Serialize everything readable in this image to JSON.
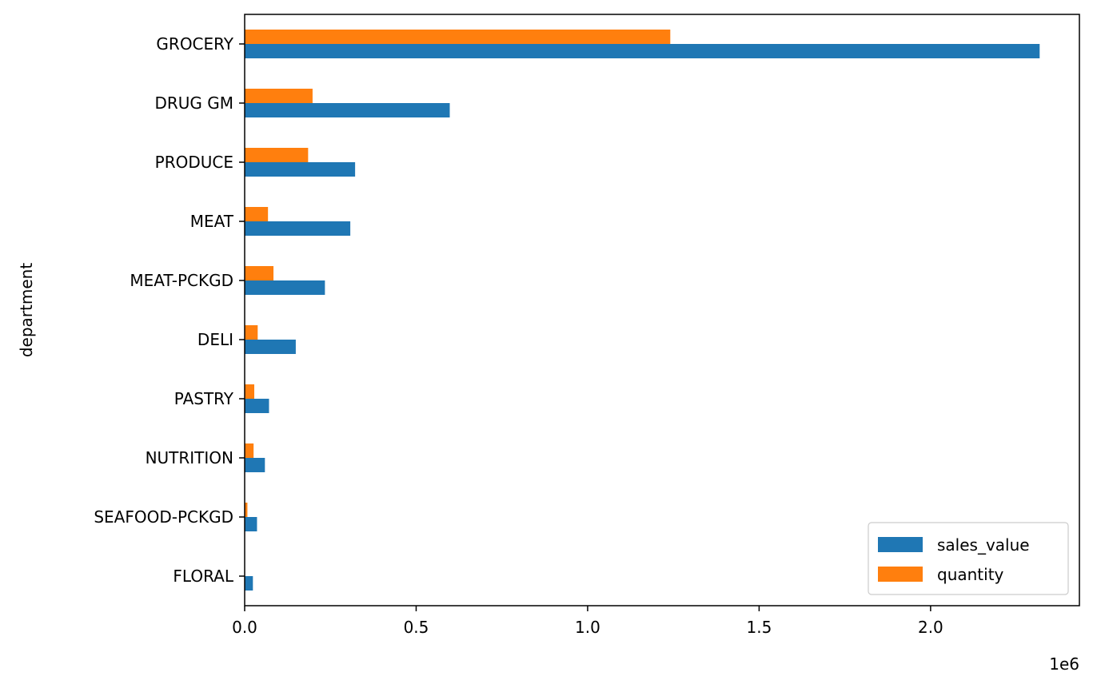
{
  "chart_data": {
    "type": "bar",
    "orientation": "horizontal",
    "categories": [
      "GROCERY",
      "DRUG GM",
      "PRODUCE",
      "MEAT",
      "MEAT-PCKGD",
      "DELI",
      "PASTRY",
      "NUTRITION",
      "SEAFOOD-PCKGD",
      "FLORAL"
    ],
    "series": [
      {
        "name": "sales_value",
        "color": "#1f77b4",
        "values": [
          2318000,
          598000,
          322000,
          308000,
          234000,
          149000,
          71000,
          59000,
          36000,
          24000
        ]
      },
      {
        "name": "quantity",
        "color": "#ff7f0e",
        "values": [
          1241000,
          198000,
          185000,
          68000,
          84000,
          38000,
          28000,
          26000,
          8000,
          1000
        ]
      }
    ],
    "xlabel": "",
    "ylabel": "department",
    "xlim": [
      0,
      2433900
    ],
    "xticks": [
      0,
      500000,
      1000000,
      1500000,
      2000000
    ],
    "xtick_labels": [
      "0.0",
      "0.5",
      "1.0",
      "1.5",
      "2.0"
    ],
    "offset_text": "1e6",
    "legend_position": "lower-right",
    "grid": false
  }
}
